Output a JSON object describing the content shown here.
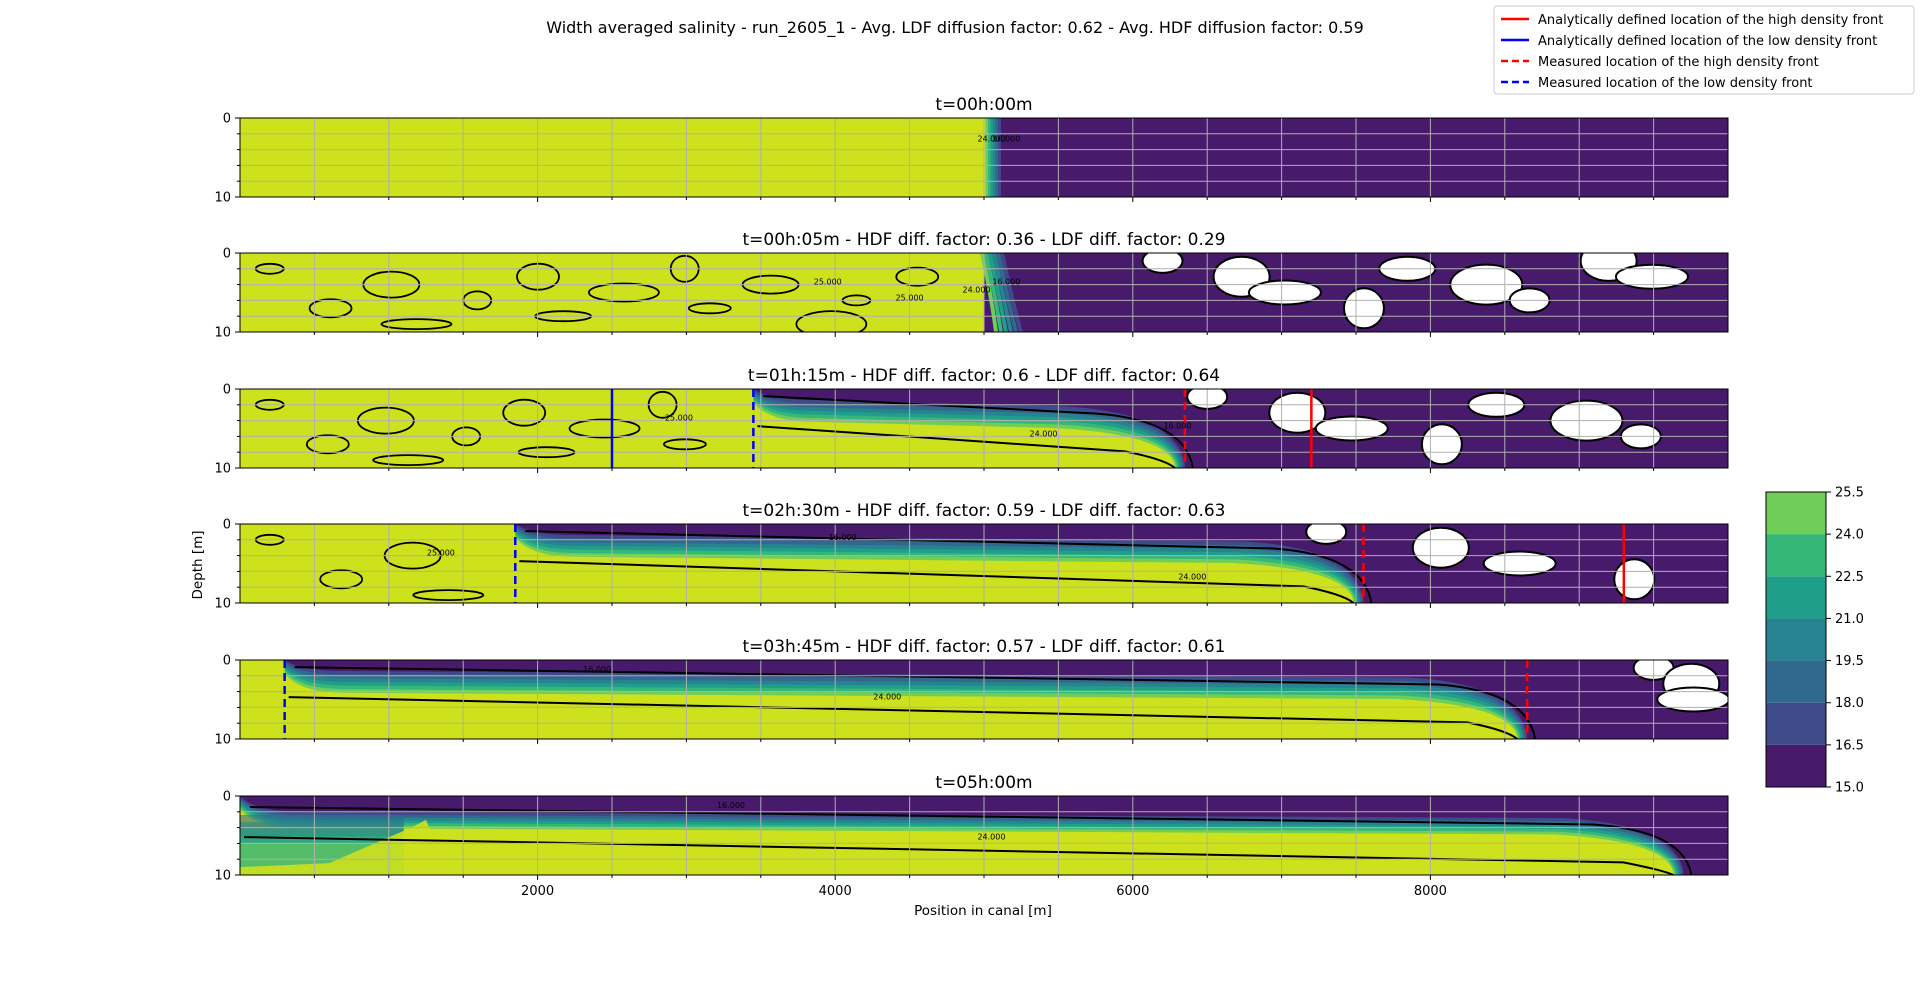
{
  "chart_data": {
    "type": "heatmap",
    "title": "Width averaged salinity - run_2605_1 - Avg. LDF diffusion factor: 0.62 - Avg. HDF diffusion factor: 0.59",
    "xlabel": "Position in canal [m]",
    "ylabel": "Depth [m]",
    "xlim": [
      0,
      10000
    ],
    "ylim": [
      10,
      0
    ],
    "x_ticks": [
      2000,
      4000,
      6000,
      8000
    ],
    "y_ticks": [
      0,
      10
    ],
    "grid": true,
    "legend_placement": "top-right",
    "legend": [
      {
        "label": "Analytically defined location of the high density front",
        "color": "#ff0000",
        "style": "solid"
      },
      {
        "label": "Analytically defined location of the low density front",
        "color": "#0000ff",
        "style": "solid"
      },
      {
        "label": "Measured location of the high density front",
        "color": "#ff0000",
        "style": "dashed"
      },
      {
        "label": "Measured location of the low density front",
        "color": "#0000ff",
        "style": "dashed"
      }
    ],
    "colorbar": {
      "levels": [
        15.0,
        16.5,
        18.0,
        19.5,
        21.0,
        22.5,
        24.0,
        25.5
      ],
      "tick_labels": [
        "15.0",
        "16.5",
        "18.0",
        "19.5",
        "21.0",
        "22.5",
        "24.0",
        "25.5"
      ],
      "colors": [
        "#481a6c",
        "#3e4a89",
        "#31688e",
        "#26838f",
        "#1f9e89",
        "#35b779",
        "#6ece58",
        "#cde11d"
      ]
    },
    "panels": [
      {
        "title": "t=00h:00m",
        "front_position": 5050,
        "analytical_hdf": null,
        "analytical_ldf": null,
        "measured_hdf": null,
        "measured_ldf": null,
        "contour_labels": [
          "24.000",
          "16.000"
        ]
      },
      {
        "title": "t=00h:05m - HDF diff. factor: 0.36 - LDF diff. factor: 0.29",
        "front_position": 5000,
        "analytical_hdf": null,
        "analytical_ldf": null,
        "measured_hdf": null,
        "measured_ldf": null,
        "contour_labels": [
          "25.000",
          "25.000",
          "24.000",
          "16.000"
        ]
      },
      {
        "title": "t=01h:15m - HDF diff. factor: 0.6 - LDF diff. factor: 0.64",
        "front_position": 3450,
        "analytical_hdf": 7200,
        "analytical_ldf": 2500,
        "measured_hdf": 6350,
        "measured_ldf": 3450,
        "contour_labels": [
          "25.000",
          "24.000",
          "16.000"
        ]
      },
      {
        "title": "t=02h:30m - HDF diff. factor: 0.59 - LDF diff. factor: 0.63",
        "front_position": 1850,
        "analytical_hdf": 9300,
        "analytical_ldf": null,
        "measured_hdf": 7550,
        "measured_ldf": 1850,
        "contour_labels": [
          "25.000",
          "16.000",
          "24.000"
        ]
      },
      {
        "title": "t=03h:45m - HDF diff. factor: 0.57 - LDF diff. factor: 0.61",
        "front_position": 300,
        "analytical_hdf": null,
        "analytical_ldf": null,
        "measured_hdf": 8650,
        "measured_ldf": 300,
        "contour_labels": [
          "16.000",
          "24.000"
        ]
      },
      {
        "title": "t=05h:00m",
        "front_position": 0,
        "analytical_hdf": null,
        "analytical_ldf": null,
        "measured_hdf": null,
        "measured_ldf": null,
        "contour_labels": [
          "16.000",
          "24.000"
        ]
      }
    ]
  }
}
